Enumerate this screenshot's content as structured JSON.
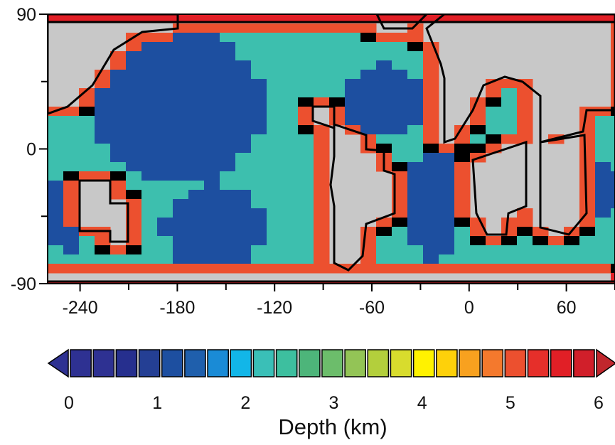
{
  "map": {
    "x_ticks": [
      "-240",
      "-180",
      "-120",
      "-60",
      "0",
      "60"
    ],
    "x_tick_values": [
      -240,
      -180,
      -120,
      -60,
      0,
      60
    ],
    "y_ticks": [
      "90",
      "0",
      "-90"
    ],
    "y_tick_values": [
      90,
      0,
      -90
    ],
    "x_range": [
      -260,
      90
    ],
    "y_range": [
      -90,
      90
    ],
    "land_color": "#c8c8c8",
    "coast_color": "#000000"
  },
  "colorbar": {
    "title": "Depth (km)",
    "labels": [
      "0",
      "1",
      "2",
      "3",
      "4",
      "5",
      "6"
    ],
    "label_values": [
      0,
      1,
      2,
      3,
      4,
      5,
      6
    ],
    "colors": [
      "#2e3192",
      "#2e3192",
      "#262f8e",
      "#243f94",
      "#1d4fa0",
      "#1f5fac",
      "#1a8bd6",
      "#12b6e8",
      "#3abfb7",
      "#3dbf9f",
      "#4db57a",
      "#6cbd6b",
      "#93c456",
      "#b3cf3c",
      "#d8dc2d",
      "#fff200",
      "#fed10a",
      "#f8a11f",
      "#f4792d",
      "#ec502f",
      "#e62f2a",
      "#e11f26",
      "#d11f2a"
    ],
    "min_color": "#2e3192",
    "max_color": "#c1272d"
  }
}
